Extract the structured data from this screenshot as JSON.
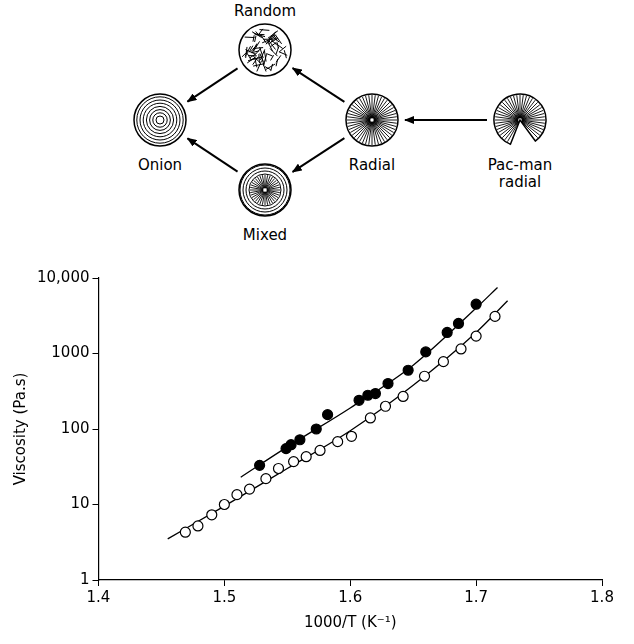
{
  "diagram": {
    "nodes": [
      {
        "label": "Random"
      },
      {
        "label": "Onion"
      },
      {
        "label": "Mixed"
      },
      {
        "label": "Radial"
      },
      {
        "label": "Pac-man radial"
      }
    ],
    "edges": [
      {
        "from": "Radial",
        "to": "Random"
      },
      {
        "from": "Random",
        "to": "Onion"
      },
      {
        "from": "Radial",
        "to": "Mixed"
      },
      {
        "from": "Mixed",
        "to": "Onion"
      },
      {
        "from": "Pac-man radial",
        "to": "Radial"
      }
    ]
  },
  "chart_data": {
    "type": "scatter",
    "x_label": "1000/T (K⁻¹)",
    "y_label": "Viscosity (Pa.s)",
    "xlim": [
      1.4,
      1.8
    ],
    "xticks": [
      1.4,
      1.5,
      1.6,
      1.7,
      1.8
    ],
    "ylim": [
      1,
      10000
    ],
    "yticks": [
      1,
      10,
      100,
      1000,
      {
        "value": 10000,
        "label": "10,000"
      }
    ],
    "log": "y",
    "grid": false,
    "series": [
      {
        "type": "scatter",
        "color": "#000000",
        "marker": "filled_circle",
        "x": [
          1.528,
          1.549,
          1.553,
          1.56,
          1.573,
          1.582,
          1.607,
          1.614,
          1.62,
          1.63,
          1.646,
          1.66,
          1.677,
          1.686,
          1.7
        ],
        "values": [
          33,
          55,
          62,
          72,
          100,
          155,
          240,
          280,
          295,
          400,
          600,
          1050,
          1900,
          2500,
          4500
        ]
      },
      {
        "type": "scatter",
        "color": "#000000",
        "marker": "open_circle",
        "x": [
          1.469,
          1.479,
          1.49,
          1.5,
          1.51,
          1.52,
          1.533,
          1.543,
          1.555,
          1.565,
          1.576,
          1.59,
          1.601,
          1.616,
          1.628,
          1.642,
          1.659,
          1.674,
          1.688,
          1.7,
          1.715
        ],
        "values": [
          4.3,
          5.2,
          7.3,
          10,
          13.5,
          16,
          22,
          30,
          37,
          43,
          52,
          68,
          80,
          140,
          200,
          270,
          500,
          780,
          1150,
          1700,
          3100
        ]
      },
      {
        "type": "line",
        "color": "#000000",
        "marker": "none",
        "line_style": "solid",
        "x": [
          1.513,
          1.55,
          1.6,
          1.65,
          1.7,
          1.717
        ],
        "values": [
          23,
          58,
          190,
          700,
          4000,
          7500
        ]
      },
      {
        "type": "line",
        "color": "#000000",
        "marker": "none",
        "line_style": "solid",
        "x": [
          1.455,
          1.5,
          1.55,
          1.6,
          1.65,
          1.7,
          1.725
        ],
        "values": [
          3.5,
          9.5,
          30,
          95,
          380,
          1900,
          5000
        ]
      }
    ]
  }
}
